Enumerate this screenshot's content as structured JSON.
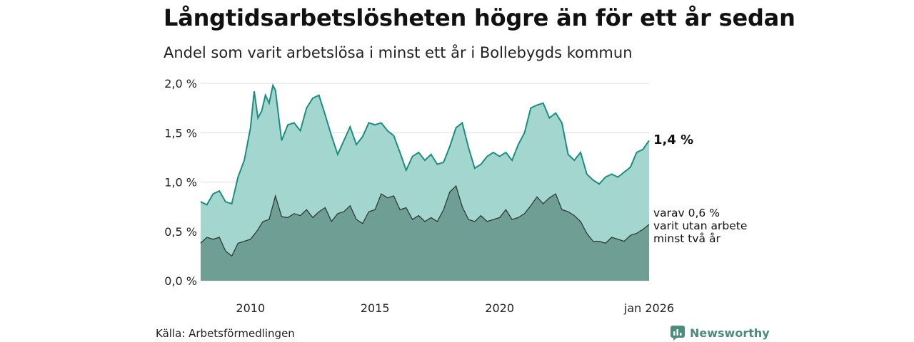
{
  "title": "Långtidsarbetslösheten högre än för ett år sedan",
  "subtitle": "Andel som varit arbetslösa i minst ett år i Bollebygds kommun",
  "source": "Källa: Arbetsförmedlingen",
  "brand": "Newsworthy",
  "annotations": {
    "last_total": "1,4 %",
    "sub_line1": "varav 0,6 %",
    "sub_line2": "varit utan arbete",
    "sub_line3": "minst två år"
  },
  "colors": {
    "total_fill": "#a3d6cf",
    "total_line": "#1a8f80",
    "long_fill": "#6f9e95",
    "long_line": "#2d3b37",
    "grid": "#dddddd",
    "brand": "#4a8c7e"
  },
  "chart_data": {
    "type": "area",
    "title": "Långtidsarbetslösheten högre än för ett år sedan",
    "subtitle": "Andel som varit arbetslösa i minst ett år i Bollebygds kommun",
    "xlabel": "",
    "ylabel": "",
    "y_ticks": [
      0,
      0.5,
      1.0,
      1.5,
      2.0
    ],
    "y_tick_labels": [
      "0,0 %",
      "0,5 %",
      "1,0 %",
      "1,5 %",
      "2,0 %"
    ],
    "ylim": [
      0,
      2.0
    ],
    "x_ticks": [
      2010,
      2015,
      2020,
      2026
    ],
    "x_tick_labels": [
      "2010",
      "2015",
      "2020",
      "jan 2026"
    ],
    "xlim": [
      2008.0,
      2026.0
    ],
    "grid": true,
    "series": [
      {
        "name": "Minst ett år",
        "x": [
          2008.0,
          2008.25,
          2008.5,
          2008.75,
          2009.0,
          2009.25,
          2009.5,
          2009.75,
          2010.0,
          2010.15,
          2010.3,
          2010.45,
          2010.6,
          2010.75,
          2010.9,
          2011.0,
          2011.25,
          2011.5,
          2011.75,
          2012.0,
          2012.25,
          2012.5,
          2012.75,
          2013.0,
          2013.25,
          2013.5,
          2013.75,
          2014.0,
          2014.25,
          2014.5,
          2014.75,
          2015.0,
          2015.25,
          2015.5,
          2015.75,
          2016.0,
          2016.25,
          2016.5,
          2016.75,
          2017.0,
          2017.25,
          2017.5,
          2017.75,
          2018.0,
          2018.25,
          2018.5,
          2018.75,
          2019.0,
          2019.25,
          2019.5,
          2019.75,
          2020.0,
          2020.25,
          2020.5,
          2020.75,
          2021.0,
          2021.25,
          2021.5,
          2021.75,
          2022.0,
          2022.25,
          2022.5,
          2022.75,
          2023.0,
          2023.25,
          2023.5,
          2023.75,
          2024.0,
          2024.25,
          2024.5,
          2024.75,
          2025.0,
          2025.25,
          2025.5,
          2025.75,
          2026.0
        ],
        "values": [
          0.8,
          0.77,
          0.88,
          0.91,
          0.8,
          0.78,
          1.05,
          1.22,
          1.55,
          1.92,
          1.65,
          1.72,
          1.88,
          1.8,
          1.98,
          1.93,
          1.42,
          1.58,
          1.6,
          1.52,
          1.75,
          1.85,
          1.88,
          1.68,
          1.47,
          1.28,
          1.42,
          1.56,
          1.38,
          1.46,
          1.6,
          1.58,
          1.6,
          1.52,
          1.47,
          1.3,
          1.12,
          1.26,
          1.3,
          1.22,
          1.28,
          1.18,
          1.2,
          1.36,
          1.55,
          1.6,
          1.35,
          1.14,
          1.18,
          1.26,
          1.3,
          1.26,
          1.3,
          1.22,
          1.38,
          1.5,
          1.75,
          1.78,
          1.8,
          1.65,
          1.7,
          1.6,
          1.28,
          1.22,
          1.3,
          1.08,
          1.02,
          0.98,
          1.05,
          1.08,
          1.05,
          1.1,
          1.15,
          1.3,
          1.33,
          1.42
        ]
      },
      {
        "name": "varav minst två år",
        "x": [
          2008.0,
          2008.25,
          2008.5,
          2008.75,
          2009.0,
          2009.25,
          2009.5,
          2009.75,
          2010.0,
          2010.25,
          2010.5,
          2010.75,
          2011.0,
          2011.25,
          2011.5,
          2011.75,
          2012.0,
          2012.25,
          2012.5,
          2012.75,
          2013.0,
          2013.25,
          2013.5,
          2013.75,
          2014.0,
          2014.25,
          2014.5,
          2014.75,
          2015.0,
          2015.25,
          2015.5,
          2015.75,
          2016.0,
          2016.25,
          2016.5,
          2016.75,
          2017.0,
          2017.25,
          2017.5,
          2017.75,
          2018.0,
          2018.25,
          2018.5,
          2018.75,
          2019.0,
          2019.25,
          2019.5,
          2019.75,
          2020.0,
          2020.25,
          2020.5,
          2020.75,
          2021.0,
          2021.25,
          2021.5,
          2021.75,
          2022.0,
          2022.25,
          2022.5,
          2022.75,
          2023.0,
          2023.25,
          2023.5,
          2023.75,
          2024.0,
          2024.25,
          2024.5,
          2024.75,
          2025.0,
          2025.25,
          2025.5,
          2025.75,
          2026.0
        ],
        "values": [
          0.38,
          0.44,
          0.42,
          0.44,
          0.3,
          0.25,
          0.38,
          0.4,
          0.42,
          0.5,
          0.6,
          0.62,
          0.86,
          0.65,
          0.64,
          0.68,
          0.66,
          0.72,
          0.64,
          0.7,
          0.74,
          0.6,
          0.68,
          0.7,
          0.76,
          0.62,
          0.58,
          0.7,
          0.72,
          0.88,
          0.84,
          0.86,
          0.72,
          0.74,
          0.62,
          0.66,
          0.6,
          0.64,
          0.6,
          0.72,
          0.9,
          0.96,
          0.75,
          0.62,
          0.6,
          0.66,
          0.6,
          0.62,
          0.64,
          0.72,
          0.62,
          0.64,
          0.68,
          0.76,
          0.85,
          0.78,
          0.84,
          0.88,
          0.72,
          0.7,
          0.66,
          0.6,
          0.48,
          0.4,
          0.4,
          0.38,
          0.44,
          0.42,
          0.4,
          0.46,
          0.48,
          0.52,
          0.57
        ]
      }
    ]
  }
}
